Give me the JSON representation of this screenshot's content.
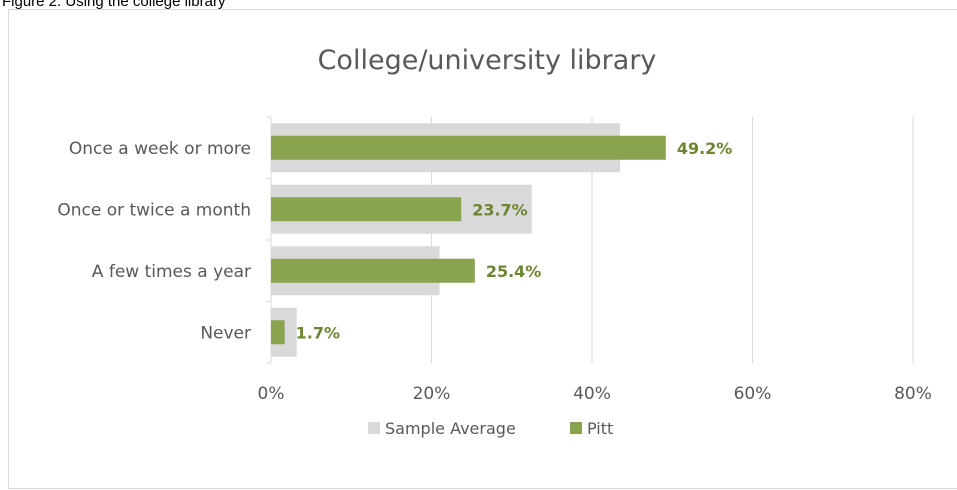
{
  "caption": "Figure 2. Using the college library",
  "colors": {
    "sample_average": "#d9d9d9",
    "pitt": "#8aa34f",
    "data_label": "#6b8530",
    "gridline": "#d9d9d9",
    "axis": "#d9d9d9",
    "text": "#595959"
  },
  "chart_data": {
    "type": "bar",
    "orientation": "horizontal",
    "title": "College/university library",
    "categories": [
      "Once a week or more",
      "Once or twice a month",
      "A few times a year",
      "Never"
    ],
    "series": [
      {
        "name": "Sample Average",
        "values": [
          43.5,
          32.5,
          21.0,
          3.2
        ]
      },
      {
        "name": "Pitt",
        "values": [
          49.2,
          23.7,
          25.4,
          1.7
        ]
      }
    ],
    "data_labels": [
      "49.2%",
      "23.7%",
      "25.4%",
      "1.7%"
    ],
    "xlim": [
      0,
      80
    ],
    "xticks": [
      0,
      20,
      40,
      60,
      80
    ],
    "xtick_labels": [
      "0%",
      "20%",
      "40%",
      "60%",
      "80%"
    ],
    "xlabel": "",
    "ylabel": "",
    "grid": true,
    "legend_position": "bottom"
  }
}
